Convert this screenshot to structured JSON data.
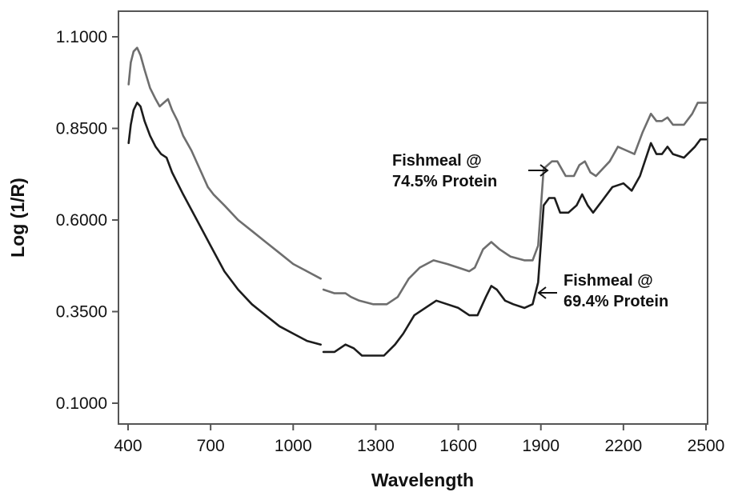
{
  "chart_data": {
    "type": "line",
    "title": "",
    "xlabel": "Wavelength",
    "ylabel": "Log (1/R)",
    "xlim": [
      400,
      2500
    ],
    "ylim": [
      0.1,
      1.2
    ],
    "x_ticks": [
      "400",
      "700",
      "1000",
      "1300",
      "1600",
      "1900",
      "2200",
      "2500"
    ],
    "y_ticks": [
      "0.1000",
      "0.3500",
      "0.6000",
      "0.8500",
      "1.1000"
    ],
    "grid": false,
    "series": [
      {
        "name": "Fishmeal @ 74.5% Protein",
        "color": "#6e6e6e",
        "segments": [
          [
            [
              402,
              0.97
            ],
            [
              410,
              1.03
            ],
            [
              420,
              1.06
            ],
            [
              433,
              1.07
            ],
            [
              445,
              1.05
            ],
            [
              460,
              1.01
            ],
            [
              480,
              0.96
            ],
            [
              500,
              0.93
            ],
            [
              515,
              0.91
            ],
            [
              530,
              0.92
            ],
            [
              545,
              0.93
            ],
            [
              560,
              0.9
            ],
            [
              580,
              0.87
            ],
            [
              600,
              0.83
            ],
            [
              630,
              0.79
            ],
            [
              660,
              0.74
            ],
            [
              690,
              0.69
            ],
            [
              710,
              0.67
            ],
            [
              750,
              0.64
            ],
            [
              800,
              0.6
            ],
            [
              850,
              0.57
            ],
            [
              900,
              0.54
            ],
            [
              950,
              0.51
            ],
            [
              1000,
              0.48
            ],
            [
              1050,
              0.46
            ],
            [
              1100,
              0.44
            ]
          ],
          [
            [
              1110,
              0.41
            ],
            [
              1150,
              0.4
            ],
            [
              1190,
              0.4
            ],
            [
              1210,
              0.39
            ],
            [
              1240,
              0.38
            ],
            [
              1290,
              0.37
            ],
            [
              1340,
              0.37
            ],
            [
              1380,
              0.39
            ],
            [
              1420,
              0.44
            ],
            [
              1460,
              0.47
            ],
            [
              1510,
              0.49
            ],
            [
              1560,
              0.48
            ],
            [
              1600,
              0.47
            ],
            [
              1640,
              0.46
            ],
            [
              1660,
              0.47
            ],
            [
              1690,
              0.52
            ],
            [
              1720,
              0.54
            ],
            [
              1750,
              0.52
            ],
            [
              1790,
              0.5
            ],
            [
              1840,
              0.49
            ],
            [
              1870,
              0.49
            ],
            [
              1890,
              0.53
            ],
            [
              1910,
              0.74
            ],
            [
              1940,
              0.76
            ],
            [
              1960,
              0.76
            ],
            [
              1990,
              0.72
            ],
            [
              2020,
              0.72
            ],
            [
              2040,
              0.75
            ],
            [
              2060,
              0.76
            ],
            [
              2080,
              0.73
            ],
            [
              2100,
              0.72
            ],
            [
              2150,
              0.76
            ],
            [
              2180,
              0.8
            ],
            [
              2210,
              0.79
            ],
            [
              2240,
              0.78
            ],
            [
              2270,
              0.84
            ],
            [
              2300,
              0.89
            ],
            [
              2320,
              0.87
            ],
            [
              2340,
              0.87
            ],
            [
              2360,
              0.88
            ],
            [
              2380,
              0.86
            ],
            [
              2420,
              0.86
            ],
            [
              2450,
              0.89
            ],
            [
              2470,
              0.92
            ],
            [
              2500,
              0.92
            ]
          ]
        ]
      },
      {
        "name": "Fishmeal @ 69.4% Protein",
        "color": "#1c1c1c",
        "segments": [
          [
            [
              402,
              0.81
            ],
            [
              410,
              0.86
            ],
            [
              420,
              0.9
            ],
            [
              433,
              0.92
            ],
            [
              445,
              0.91
            ],
            [
              460,
              0.87
            ],
            [
              480,
              0.83
            ],
            [
              500,
              0.8
            ],
            [
              520,
              0.78
            ],
            [
              540,
              0.77
            ],
            [
              560,
              0.73
            ],
            [
              600,
              0.67
            ],
            [
              650,
              0.6
            ],
            [
              700,
              0.53
            ],
            [
              750,
              0.46
            ],
            [
              800,
              0.41
            ],
            [
              850,
              0.37
            ],
            [
              900,
              0.34
            ],
            [
              950,
              0.31
            ],
            [
              1000,
              0.29
            ],
            [
              1050,
              0.27
            ],
            [
              1100,
              0.26
            ]
          ],
          [
            [
              1110,
              0.24
            ],
            [
              1150,
              0.24
            ],
            [
              1190,
              0.26
            ],
            [
              1220,
              0.25
            ],
            [
              1250,
              0.23
            ],
            [
              1290,
              0.23
            ],
            [
              1330,
              0.23
            ],
            [
              1370,
              0.26
            ],
            [
              1400,
              0.29
            ],
            [
              1440,
              0.34
            ],
            [
              1480,
              0.36
            ],
            [
              1520,
              0.38
            ],
            [
              1560,
              0.37
            ],
            [
              1600,
              0.36
            ],
            [
              1640,
              0.34
            ],
            [
              1670,
              0.34
            ],
            [
              1700,
              0.39
            ],
            [
              1720,
              0.42
            ],
            [
              1740,
              0.41
            ],
            [
              1770,
              0.38
            ],
            [
              1800,
              0.37
            ],
            [
              1840,
              0.36
            ],
            [
              1870,
              0.37
            ],
            [
              1890,
              0.43
            ],
            [
              1910,
              0.64
            ],
            [
              1930,
              0.66
            ],
            [
              1950,
              0.66
            ],
            [
              1970,
              0.62
            ],
            [
              2000,
              0.62
            ],
            [
              2030,
              0.64
            ],
            [
              2050,
              0.67
            ],
            [
              2070,
              0.64
            ],
            [
              2090,
              0.62
            ],
            [
              2120,
              0.65
            ],
            [
              2160,
              0.69
            ],
            [
              2200,
              0.7
            ],
            [
              2230,
              0.68
            ],
            [
              2260,
              0.72
            ],
            [
              2300,
              0.81
            ],
            [
              2320,
              0.78
            ],
            [
              2340,
              0.78
            ],
            [
              2360,
              0.8
            ],
            [
              2380,
              0.78
            ],
            [
              2420,
              0.77
            ],
            [
              2460,
              0.8
            ],
            [
              2480,
              0.82
            ],
            [
              2500,
              0.82
            ]
          ]
        ]
      }
    ],
    "annotations": [
      {
        "name": "annotation-74-5",
        "lines": [
          "Fishmeal @",
          "74.5% Protein"
        ],
        "arrow_to": [
          1910,
          0.76
        ]
      },
      {
        "name": "annotation-69-4",
        "lines": [
          "Fishmeal @",
          "69.4% Protein"
        ],
        "arrow_to": [
          1890,
          0.38
        ]
      }
    ]
  }
}
